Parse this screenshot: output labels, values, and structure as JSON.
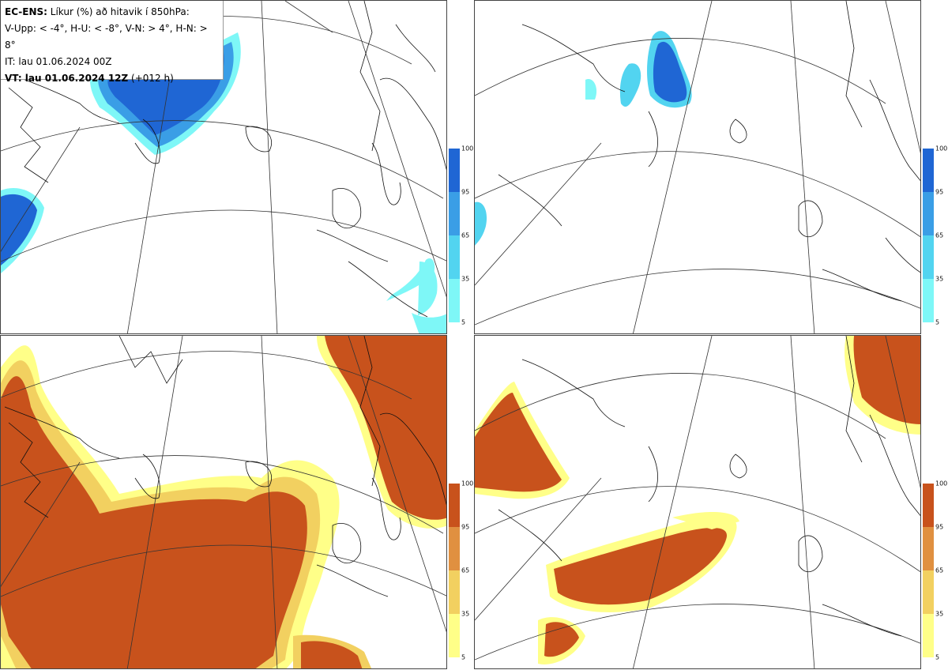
{
  "legend": {
    "title_bold": "EC-ENS:",
    "title_rest": " Líkur (%) að hitavik í 850hPa:",
    "line2": "V-Upp: < -4°, H-U: < -8°, V-N: > 4°, H-N: > 8°",
    "line3": "IT: lau 01.06.2024 00Z",
    "line4_bold": "VT: lau 01.06.2024 12Z",
    "line4_rest": " (+012 h)"
  },
  "colorbar_ticks": [
    "100",
    "95",
    "65",
    "35",
    "5"
  ],
  "colors": {
    "cold": [
      "#7ef7f7",
      "#52d4f0",
      "#3a9ee6",
      "#1f66d4"
    ],
    "warm": [
      "#ffff88",
      "#f2d060",
      "#e09040",
      "#c8521c"
    ]
  },
  "panels": [
    {
      "id": "V-Upp",
      "scheme": "cold"
    },
    {
      "id": "H-U",
      "scheme": "cold"
    },
    {
      "id": "V-N",
      "scheme": "warm"
    },
    {
      "id": "H-N",
      "scheme": "warm"
    }
  ]
}
